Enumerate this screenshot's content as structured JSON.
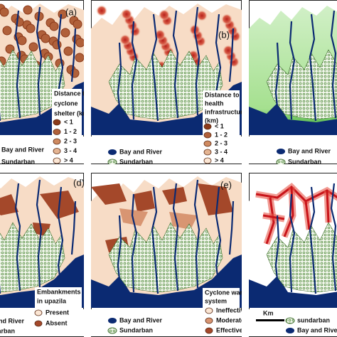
{
  "panels": [
    {
      "label": "(a)",
      "legend_title": [
        "Distance to",
        "cyclone",
        "shelter (km)"
      ],
      "legend": [
        "< 1",
        "1 - 2",
        "2 - 3",
        "3 - 4",
        "> 4"
      ],
      "legend_colors": [
        "#8b3a1a",
        "#b0603a",
        "#cf8a60",
        "#e4b492",
        "#fbe6d4"
      ],
      "base_legend": [
        "Bay and River",
        "Sundarban"
      ]
    },
    {
      "label": "(b)",
      "legend_title": [
        "Distance to",
        "health",
        "infrastructure",
        "(km)"
      ],
      "legend": [
        "< 1",
        "1 - 2",
        "2 - 3",
        "3 - 4",
        "> 4"
      ],
      "legend_colors": [
        "#8b3a1a",
        "#b0603a",
        "#cf8a60",
        "#e4b492",
        "#fbe6d4"
      ],
      "base_legend": [
        "Bay and River",
        "Sundarban"
      ]
    },
    {
      "base_legend": [
        "Bay and River",
        "Sundarban"
      ]
    },
    {
      "label": "(d)",
      "legend_title": [
        "Embankments",
        "in upazila"
      ],
      "legend": [
        "Present",
        "Absent"
      ],
      "legend_colors": [
        "#fbe6d4",
        "#a4482a"
      ],
      "base_legend": [
        "Bay and River",
        "Sundarban"
      ]
    },
    {
      "label": "(e)",
      "legend_title": [
        "Cyclone warning",
        "system"
      ],
      "legend": [
        "Ineffective",
        "Moderate",
        "Effective"
      ],
      "legend_colors": [
        "#fbe6d4",
        "#d89572",
        "#a4482a"
      ],
      "base_legend": [
        "Bay and River",
        "Sundarban"
      ]
    },
    {
      "scale_label": "Km",
      "base_legend": [
        "sundarban",
        "Bay and River"
      ]
    }
  ]
}
